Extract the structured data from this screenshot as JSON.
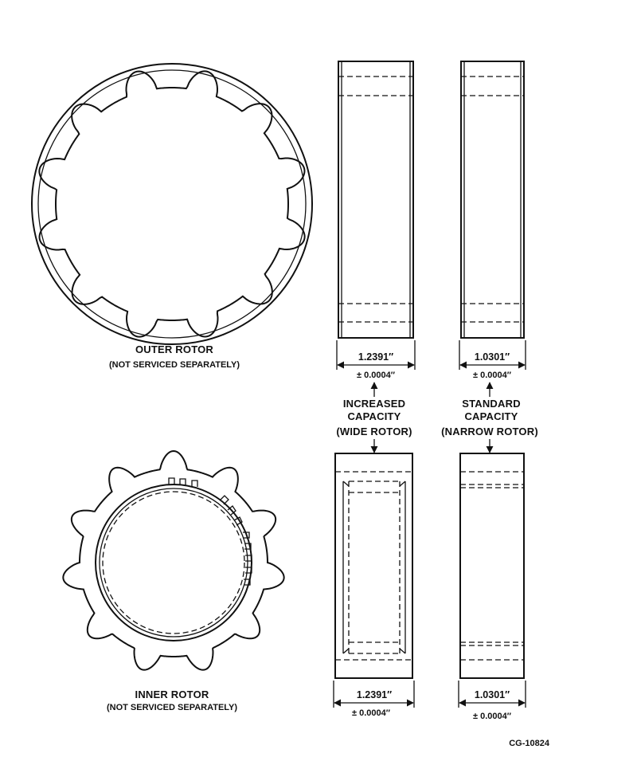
{
  "outer_rotor": {
    "title": "OUTER ROTOR",
    "note": "(NOT SERVICED SEPARATELY)"
  },
  "inner_rotor": {
    "title": "INNER ROTOR",
    "note": "(NOT SERVICED SEPARATELY)"
  },
  "increased_capacity": {
    "line1": "INCREASED",
    "line2": "CAPACITY",
    "line3": "(WIDE ROTOR)",
    "outer_width": "1.2391″",
    "outer_tolerance": "± 0.0004″",
    "inner_width": "1.2391″",
    "inner_tolerance": "± 0.0004″"
  },
  "standard_capacity": {
    "line1": "STANDARD",
    "line2": "CAPACITY",
    "line3": "(NARROW ROTOR)",
    "outer_width": "1.0301″",
    "outer_tolerance": "± 0.0004″",
    "inner_width": "1.0301″",
    "inner_tolerance": "± 0.0004″"
  },
  "figure_id": "CG-10824"
}
